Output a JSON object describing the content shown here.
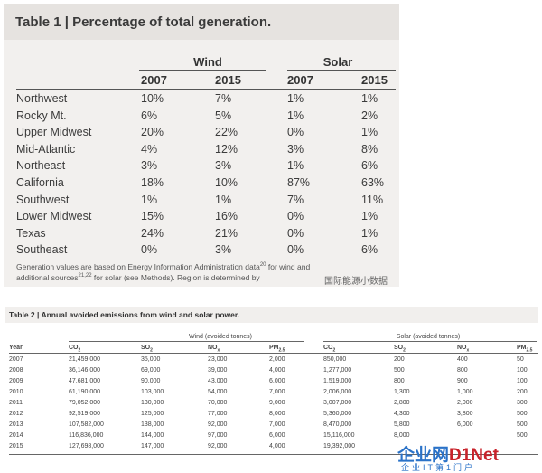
{
  "table1": {
    "title": "Table 1 | Percentage of total generation.",
    "groups": [
      "Wind",
      "Solar"
    ],
    "years": [
      "2007",
      "2015",
      "2007",
      "2015"
    ],
    "rows": [
      {
        "region": "Northwest",
        "v": [
          "10%",
          "7%",
          "1%",
          "1%"
        ]
      },
      {
        "region": "Rocky Mt.",
        "v": [
          "6%",
          "5%",
          "1%",
          "2%"
        ]
      },
      {
        "region": "Upper Midwest",
        "v": [
          "20%",
          "22%",
          "0%",
          "1%"
        ]
      },
      {
        "region": "Mid-Atlantic",
        "v": [
          "4%",
          "12%",
          "3%",
          "8%"
        ]
      },
      {
        "region": "Northeast",
        "v": [
          "3%",
          "3%",
          "1%",
          "6%"
        ]
      },
      {
        "region": "California",
        "v": [
          "18%",
          "10%",
          "87%",
          "63%"
        ]
      },
      {
        "region": "Southwest",
        "v": [
          "1%",
          "1%",
          "7%",
          "11%"
        ]
      },
      {
        "region": "Lower Midwest",
        "v": [
          "15%",
          "16%",
          "0%",
          "1%"
        ]
      },
      {
        "region": "Texas",
        "v": [
          "24%",
          "21%",
          "0%",
          "1%"
        ]
      },
      {
        "region": "Southeast",
        "v": [
          "0%",
          "3%",
          "0%",
          "6%"
        ]
      }
    ],
    "note_line1_a": "Generation values are based on Energy Information Administration data",
    "note_line1_sup": "20",
    "note_line1_b": " for wind and",
    "note_line2_a": "additional sources",
    "note_line2_sup": "21,22",
    "note_line2_b": " for solar (see Methods). Region is determined by",
    "watermark": "国际能源小数据"
  },
  "table2": {
    "title": "Table 2 | Annual avoided emissions from wind and solar power.",
    "groups": [
      "Wind (avoided tonnes)",
      "Solar (avoided tonnes)"
    ],
    "columns": [
      "Year",
      "CO",
      "SO",
      "NO",
      "PM",
      "CO",
      "SO",
      "NO",
      "PM"
    ],
    "column_subs": [
      "",
      "2",
      "2",
      "x",
      "2.5",
      "2",
      "2",
      "x",
      "2.5"
    ],
    "rows": [
      [
        "2007",
        "21,459,000",
        "35,000",
        "23,000",
        "2,000",
        "850,000",
        "200",
        "400",
        "50"
      ],
      [
        "2008",
        "36,146,000",
        "69,000",
        "39,000",
        "4,000",
        "1,277,000",
        "500",
        "800",
        "100"
      ],
      [
        "2009",
        "47,681,000",
        "90,000",
        "43,000",
        "6,000",
        "1,519,000",
        "800",
        "900",
        "100"
      ],
      [
        "2010",
        "61,190,000",
        "103,000",
        "54,000",
        "7,000",
        "2,006,000",
        "1,300",
        "1,000",
        "200"
      ],
      [
        "2011",
        "79,052,000",
        "130,000",
        "70,000",
        "9,000",
        "3,007,000",
        "2,800",
        "2,000",
        "300"
      ],
      [
        "2012",
        "92,519,000",
        "125,000",
        "77,000",
        "8,000",
        "5,360,000",
        "4,300",
        "3,800",
        "500"
      ],
      [
        "2013",
        "107,582,000",
        "138,000",
        "92,000",
        "7,000",
        "8,470,000",
        "5,800",
        "6,000",
        "500"
      ],
      [
        "2014",
        "116,836,000",
        "144,000",
        "97,000",
        "6,000",
        "15,116,000",
        "8,000",
        "",
        "500"
      ],
      [
        "2015",
        "127,698,000",
        "147,000",
        "92,000",
        "4,000",
        "19,392,000",
        "",
        "",
        ""
      ]
    ]
  },
  "watermark": {
    "main_a": "企业网",
    "main_b": "D1Net",
    "sub": "企业IT第1门户"
  }
}
